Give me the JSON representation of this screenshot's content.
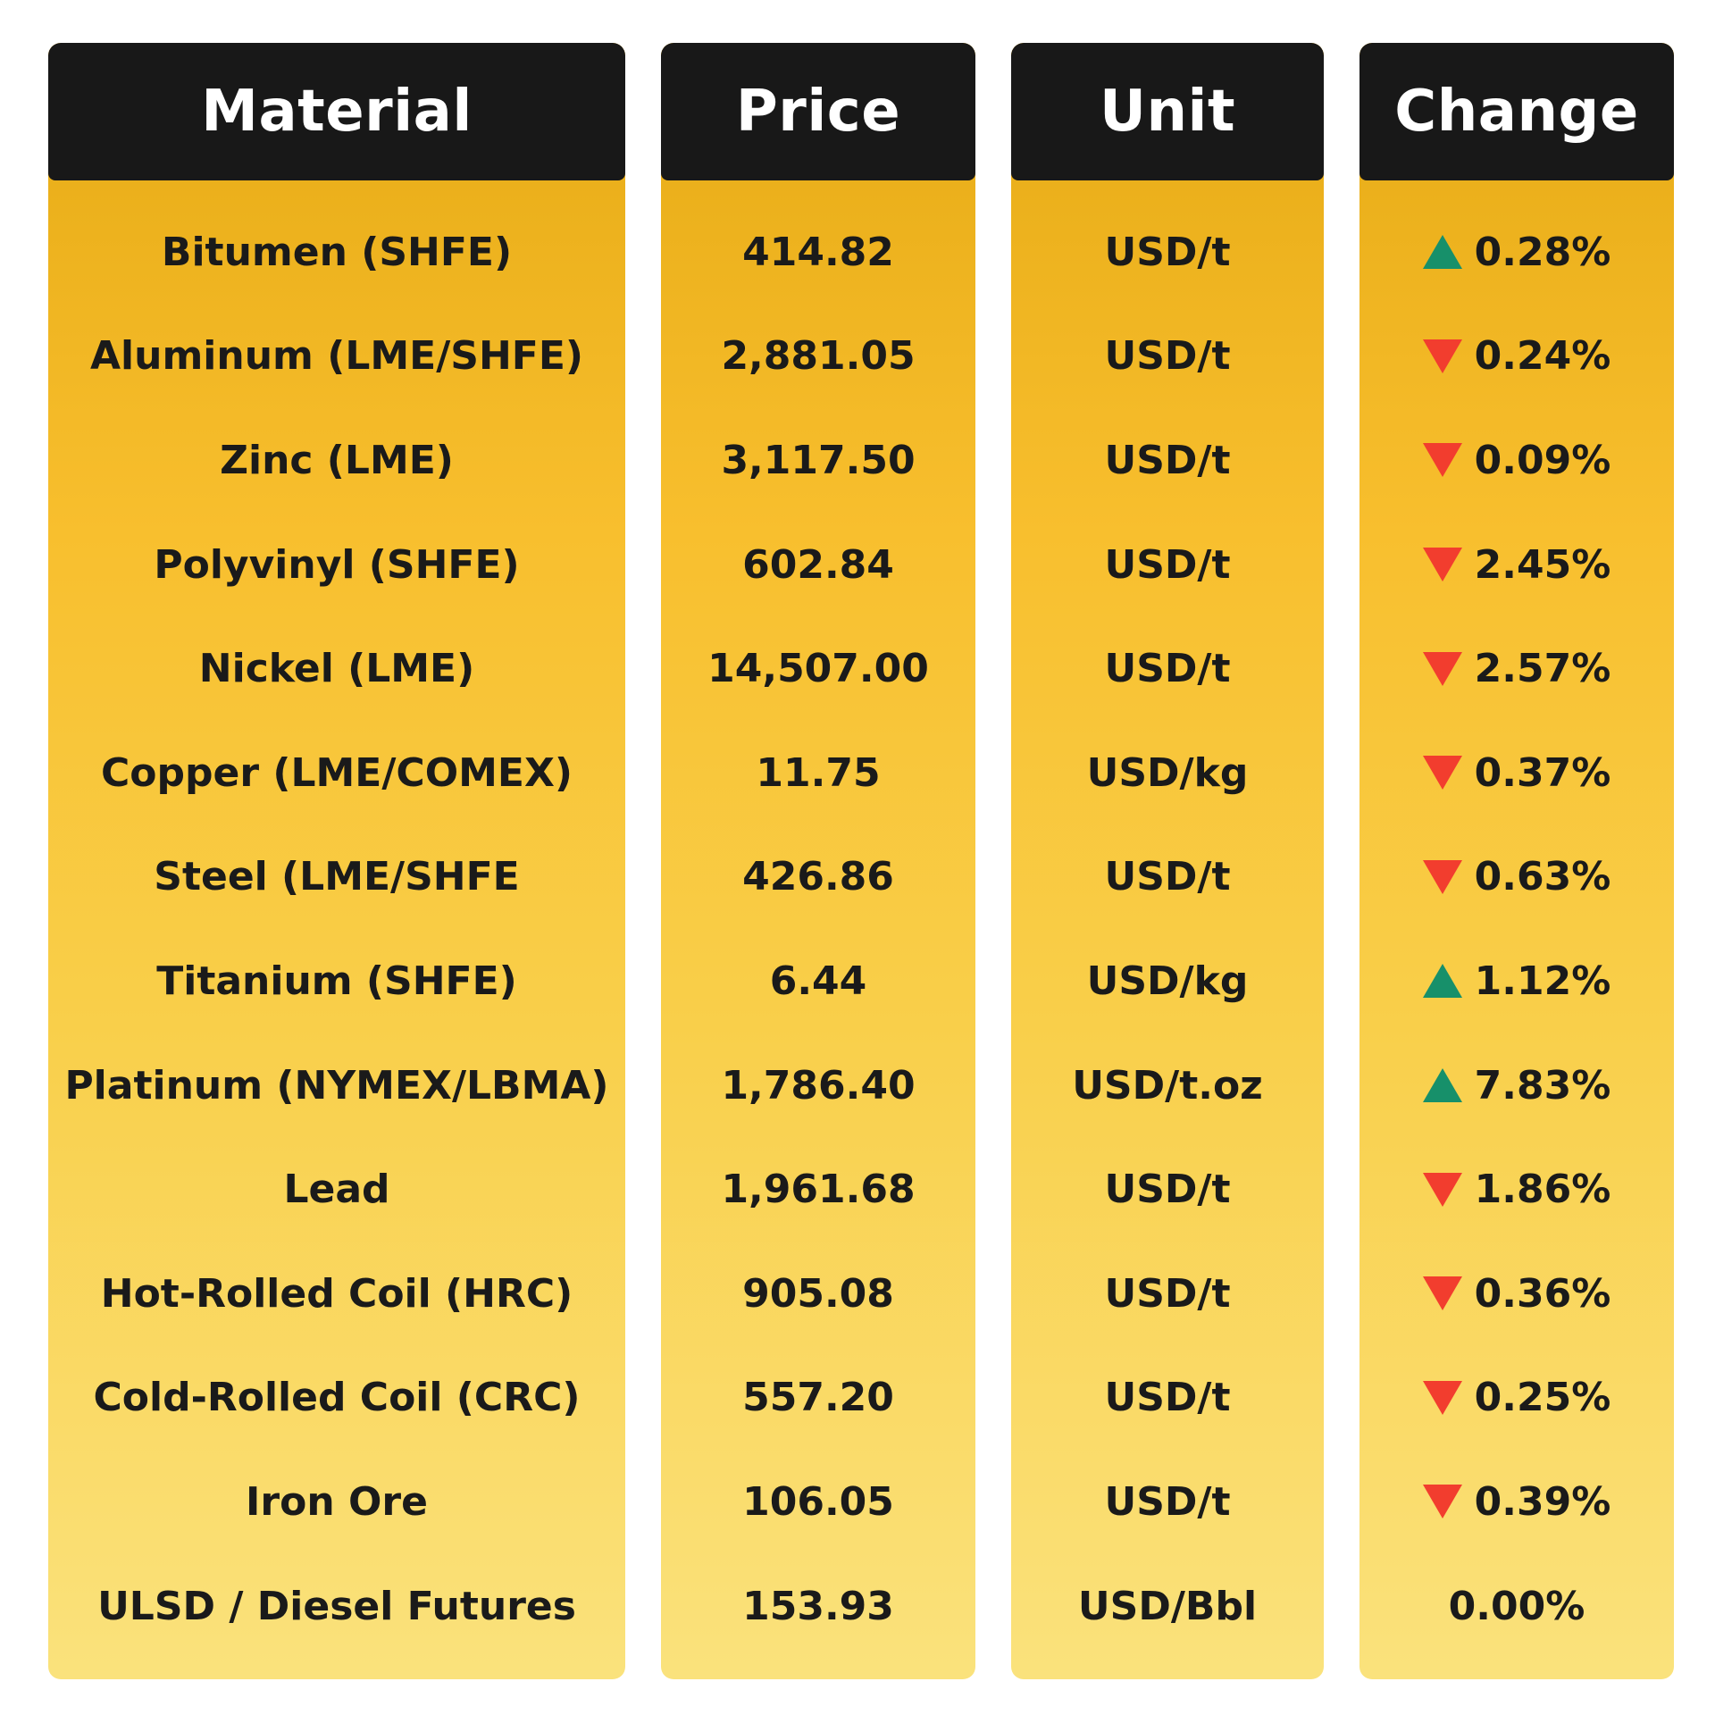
{
  "headers": {
    "material": "Material",
    "price": "Price",
    "unit": "Unit",
    "change": "Change"
  },
  "colors": {
    "header_bg": "#181818",
    "header_text": "#ffffff",
    "body_gradient_top": "#e6aa14",
    "body_gradient_bottom": "#fae27c",
    "up_arrow": "#17906a",
    "down_arrow": "#f23d2e"
  },
  "rows": [
    {
      "material": "Bitumen (SHFE)",
      "price": "414.82",
      "unit": "USD/t",
      "direction": "up",
      "change": "0.28%"
    },
    {
      "material": "Aluminum (LME/SHFE)",
      "price": "2,881.05",
      "unit": "USD/t",
      "direction": "down",
      "change": "0.24%"
    },
    {
      "material": "Zinc (LME)",
      "price": "3,117.50",
      "unit": "USD/t",
      "direction": "down",
      "change": "0.09%"
    },
    {
      "material": "Polyvinyl (SHFE)",
      "price": "602.84",
      "unit": "USD/t",
      "direction": "down",
      "change": "2.45%"
    },
    {
      "material": "Nickel (LME)",
      "price": "14,507.00",
      "unit": "USD/t",
      "direction": "down",
      "change": "2.57%"
    },
    {
      "material": "Copper (LME/COMEX)",
      "price": "11.75",
      "unit": "USD/kg",
      "direction": "down",
      "change": "0.37%"
    },
    {
      "material": "Steel (LME/SHFE",
      "price": "426.86",
      "unit": "USD/t",
      "direction": "down",
      "change": "0.63%"
    },
    {
      "material": "Titanium (SHFE)",
      "price": "6.44",
      "unit": "USD/kg",
      "direction": "up",
      "change": "1.12%"
    },
    {
      "material": "Platinum (NYMEX/LBMA)",
      "price": "1,786.40",
      "unit": "USD/t.oz",
      "direction": "up",
      "change": "7.83%"
    },
    {
      "material": "Lead",
      "price": "1,961.68",
      "unit": "USD/t",
      "direction": "down",
      "change": "1.86%"
    },
    {
      "material": "Hot-Rolled Coil (HRC)",
      "price": "905.08",
      "unit": "USD/t",
      "direction": "down",
      "change": "0.36%"
    },
    {
      "material": "Cold-Rolled Coil (CRC)",
      "price": "557.20",
      "unit": "USD/t",
      "direction": "down",
      "change": "0.25%"
    },
    {
      "material": "Iron Ore",
      "price": "106.05",
      "unit": "USD/t",
      "direction": "down",
      "change": "0.39%"
    },
    {
      "material": "ULSD / Diesel Futures",
      "price": "153.93",
      "unit": "USD/Bbl",
      "direction": "none",
      "change": "0.00%"
    }
  ]
}
